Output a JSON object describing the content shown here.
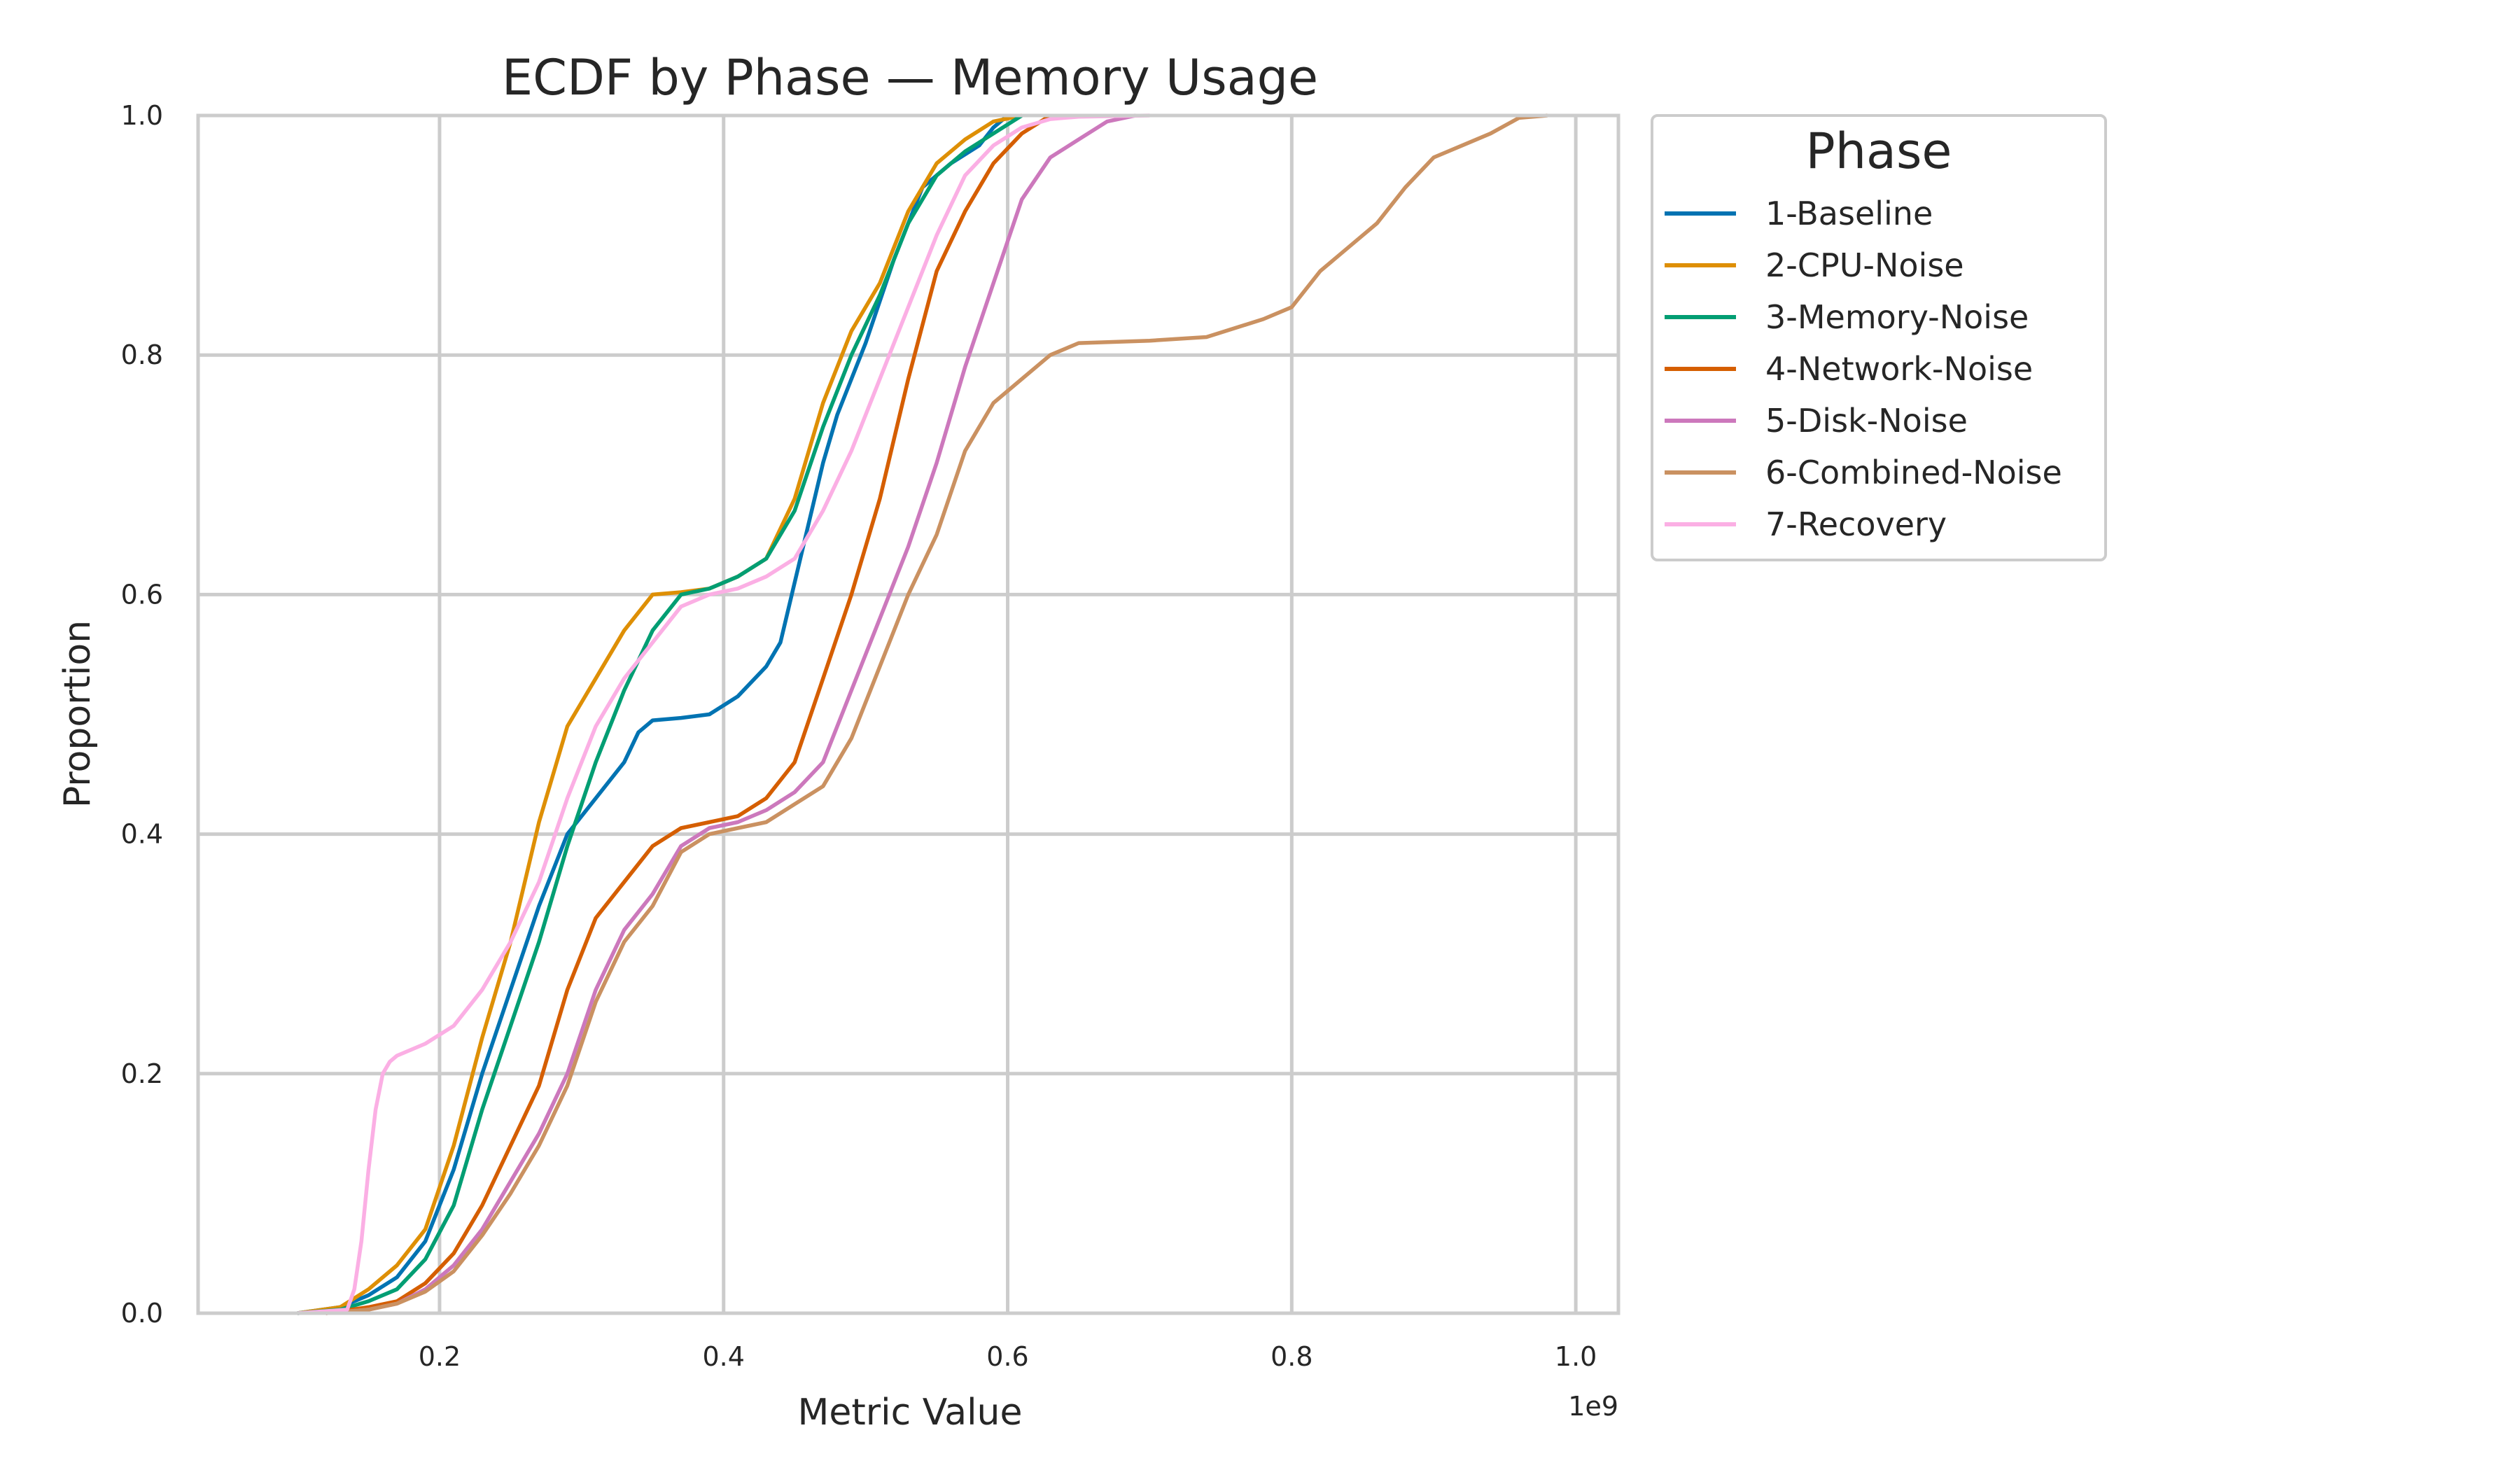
{
  "chart_data": {
    "type": "line",
    "title": "ECDF by Phase — Memory Usage",
    "xlabel": "Metric Value",
    "ylabel": "Proportion",
    "x_offset_text": "1e9",
    "xlim": [
      0.03,
      1.03
    ],
    "ylim": [
      0.0,
      1.0
    ],
    "x_ticks": [
      0.2,
      0.4,
      0.6,
      0.8,
      1.0
    ],
    "x_tick_labels": [
      "0.2",
      "0.4",
      "0.6",
      "0.8",
      "1.0"
    ],
    "y_ticks": [
      0.0,
      0.2,
      0.4,
      0.6,
      0.8,
      1.0
    ],
    "y_tick_labels": [
      "0.0",
      "0.2",
      "0.4",
      "0.6",
      "0.8",
      "1.0"
    ],
    "grid": true,
    "legend": {
      "title": "Phase",
      "placement": "outside-top-right"
    },
    "series": [
      {
        "name": "1-Baseline",
        "color": "#0173b2",
        "x": [
          0.1,
          0.13,
          0.15,
          0.17,
          0.19,
          0.21,
          0.23,
          0.25,
          0.27,
          0.29,
          0.31,
          0.33,
          0.34,
          0.35,
          0.37,
          0.39,
          0.41,
          0.43,
          0.44,
          0.45,
          0.46,
          0.47,
          0.48,
          0.5,
          0.52,
          0.54,
          0.56,
          0.58,
          0.59,
          0.6
        ],
        "values": [
          0.0,
          0.005,
          0.015,
          0.03,
          0.06,
          0.12,
          0.2,
          0.27,
          0.34,
          0.4,
          0.43,
          0.46,
          0.485,
          0.495,
          0.497,
          0.5,
          0.515,
          0.54,
          0.56,
          0.61,
          0.66,
          0.71,
          0.75,
          0.81,
          0.88,
          0.94,
          0.96,
          0.975,
          0.99,
          1.0
        ]
      },
      {
        "name": "2-CPU-Noise",
        "color": "#de8f05",
        "x": [
          0.1,
          0.13,
          0.15,
          0.17,
          0.19,
          0.21,
          0.23,
          0.25,
          0.27,
          0.29,
          0.3,
          0.31,
          0.33,
          0.35,
          0.37,
          0.39,
          0.41,
          0.43,
          0.45,
          0.47,
          0.49,
          0.51,
          0.53,
          0.55,
          0.57,
          0.59,
          0.61
        ],
        "values": [
          0.0,
          0.005,
          0.02,
          0.04,
          0.07,
          0.14,
          0.23,
          0.31,
          0.41,
          0.49,
          0.51,
          0.53,
          0.57,
          0.6,
          0.602,
          0.605,
          0.615,
          0.63,
          0.68,
          0.76,
          0.82,
          0.86,
          0.92,
          0.96,
          0.98,
          0.995,
          1.0
        ]
      },
      {
        "name": "3-Memory-Noise",
        "color": "#029e73",
        "x": [
          0.1,
          0.13,
          0.15,
          0.17,
          0.19,
          0.21,
          0.23,
          0.25,
          0.27,
          0.29,
          0.31,
          0.33,
          0.35,
          0.37,
          0.39,
          0.41,
          0.43,
          0.45,
          0.47,
          0.49,
          0.51,
          0.53,
          0.55,
          0.57,
          0.59,
          0.61
        ],
        "values": [
          0.0,
          0.003,
          0.01,
          0.02,
          0.045,
          0.09,
          0.17,
          0.24,
          0.31,
          0.39,
          0.46,
          0.52,
          0.57,
          0.6,
          0.605,
          0.615,
          0.63,
          0.67,
          0.74,
          0.8,
          0.85,
          0.91,
          0.95,
          0.97,
          0.985,
          1.0
        ]
      },
      {
        "name": "4-Network-Noise",
        "color": "#d55e00",
        "x": [
          0.12,
          0.15,
          0.17,
          0.19,
          0.21,
          0.23,
          0.25,
          0.27,
          0.29,
          0.31,
          0.33,
          0.35,
          0.37,
          0.39,
          0.41,
          0.43,
          0.45,
          0.47,
          0.49,
          0.51,
          0.53,
          0.55,
          0.57,
          0.59,
          0.61,
          0.63
        ],
        "values": [
          0.0,
          0.005,
          0.01,
          0.025,
          0.05,
          0.09,
          0.14,
          0.19,
          0.27,
          0.33,
          0.36,
          0.39,
          0.405,
          0.41,
          0.415,
          0.43,
          0.46,
          0.53,
          0.6,
          0.68,
          0.78,
          0.87,
          0.92,
          0.96,
          0.985,
          1.0
        ]
      },
      {
        "name": "5-Disk-Noise",
        "color": "#cc78bc",
        "x": [
          0.12,
          0.15,
          0.17,
          0.19,
          0.21,
          0.23,
          0.25,
          0.27,
          0.29,
          0.31,
          0.33,
          0.35,
          0.37,
          0.39,
          0.41,
          0.43,
          0.45,
          0.47,
          0.49,
          0.51,
          0.53,
          0.55,
          0.57,
          0.59,
          0.61,
          0.63,
          0.65,
          0.67,
          0.69
        ],
        "values": [
          0.0,
          0.003,
          0.008,
          0.02,
          0.04,
          0.07,
          0.11,
          0.15,
          0.2,
          0.27,
          0.32,
          0.35,
          0.39,
          0.405,
          0.41,
          0.42,
          0.435,
          0.46,
          0.52,
          0.58,
          0.64,
          0.71,
          0.79,
          0.86,
          0.93,
          0.965,
          0.98,
          0.995,
          1.0
        ]
      },
      {
        "name": "6-Combined-Noise",
        "color": "#ca9161",
        "x": [
          0.12,
          0.15,
          0.17,
          0.19,
          0.21,
          0.23,
          0.25,
          0.27,
          0.29,
          0.31,
          0.33,
          0.35,
          0.37,
          0.39,
          0.41,
          0.43,
          0.45,
          0.47,
          0.49,
          0.51,
          0.53,
          0.55,
          0.57,
          0.59,
          0.61,
          0.63,
          0.65,
          0.7,
          0.74,
          0.78,
          0.8,
          0.82,
          0.84,
          0.86,
          0.88,
          0.9,
          0.92,
          0.94,
          0.96,
          0.98
        ],
        "values": [
          0.0,
          0.003,
          0.008,
          0.018,
          0.035,
          0.065,
          0.1,
          0.14,
          0.19,
          0.26,
          0.31,
          0.34,
          0.385,
          0.4,
          0.405,
          0.41,
          0.425,
          0.44,
          0.48,
          0.54,
          0.6,
          0.65,
          0.72,
          0.76,
          0.78,
          0.8,
          0.81,
          0.812,
          0.815,
          0.83,
          0.84,
          0.87,
          0.89,
          0.91,
          0.94,
          0.965,
          0.975,
          0.985,
          0.998,
          1.0
        ]
      },
      {
        "name": "7-Recovery",
        "color": "#fbafe4",
        "x": [
          0.1,
          0.135,
          0.14,
          0.145,
          0.15,
          0.155,
          0.16,
          0.165,
          0.17,
          0.19,
          0.21,
          0.23,
          0.25,
          0.27,
          0.29,
          0.31,
          0.33,
          0.35,
          0.37,
          0.39,
          0.41,
          0.43,
          0.45,
          0.47,
          0.49,
          0.51,
          0.53,
          0.55,
          0.57,
          0.59,
          0.61,
          0.63,
          0.65,
          0.7
        ],
        "values": [
          0.0,
          0.003,
          0.02,
          0.06,
          0.12,
          0.17,
          0.2,
          0.21,
          0.215,
          0.225,
          0.24,
          0.27,
          0.31,
          0.36,
          0.43,
          0.49,
          0.53,
          0.56,
          0.59,
          0.6,
          0.605,
          0.615,
          0.63,
          0.67,
          0.72,
          0.78,
          0.84,
          0.9,
          0.95,
          0.975,
          0.99,
          0.997,
          0.999,
          1.0
        ]
      }
    ]
  }
}
